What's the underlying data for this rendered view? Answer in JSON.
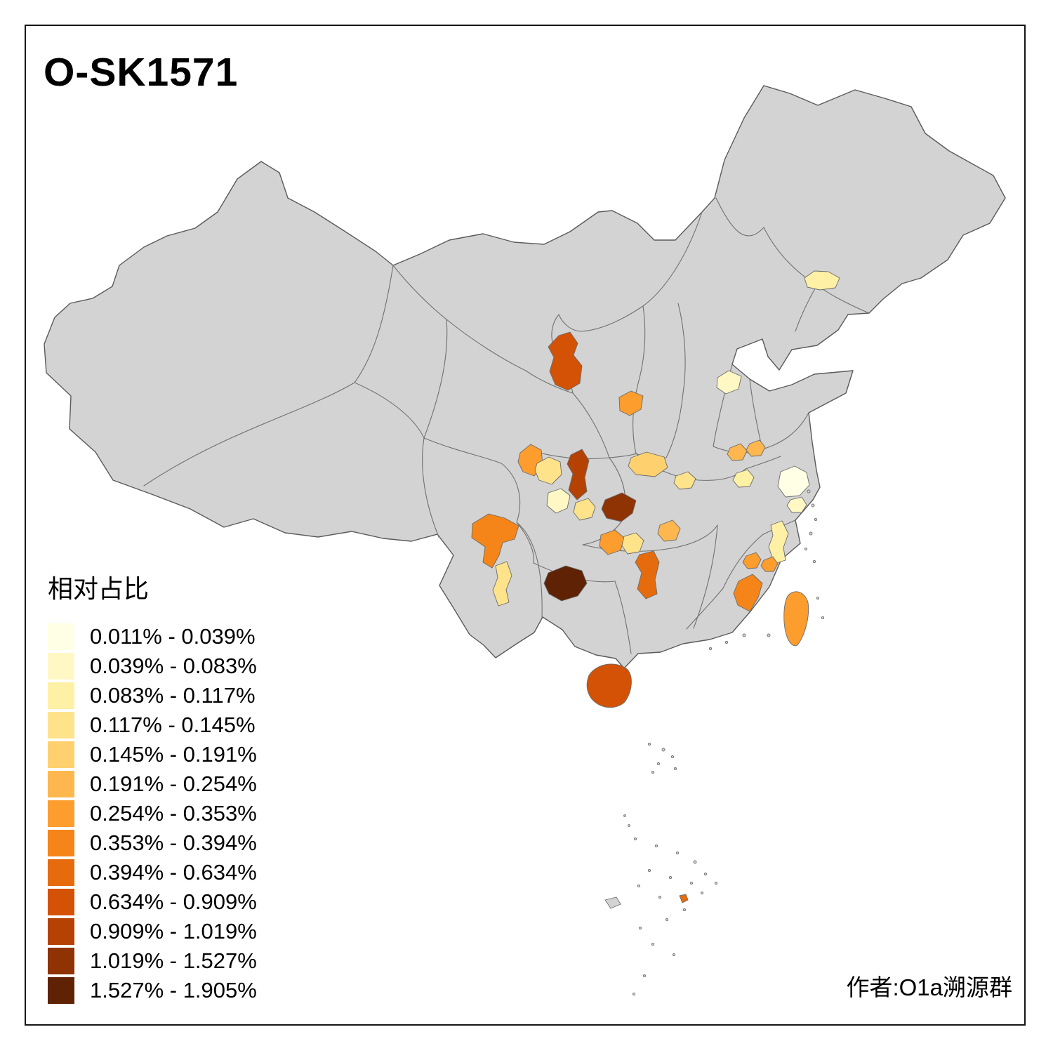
{
  "title": "O-SK1571",
  "attribution": "作者:O1a溯源群",
  "legend": {
    "title": "相对占比",
    "items": [
      {
        "range": "0.011% - 0.039%",
        "color": "#FFFFE5"
      },
      {
        "range": "0.039% - 0.083%",
        "color": "#FFF8C4"
      },
      {
        "range": "0.083% - 0.117%",
        "color": "#FEF0A5"
      },
      {
        "range": "0.117% - 0.145%",
        "color": "#FEE38B"
      },
      {
        "range": "0.145% - 0.191%",
        "color": "#FED16E"
      },
      {
        "range": "0.191% - 0.254%",
        "color": "#FEB74E"
      },
      {
        "range": "0.254% - 0.353%",
        "color": "#FD9D2E"
      },
      {
        "range": "0.353% - 0.394%",
        "color": "#F58518"
      },
      {
        "range": "0.394% - 0.634%",
        "color": "#E66B0D"
      },
      {
        "range": "0.634% - 0.909%",
        "color": "#D35205"
      },
      {
        "range": "0.909% - 1.019%",
        "color": "#B54203"
      },
      {
        "range": "1.019% - 1.527%",
        "color": "#8F3204"
      },
      {
        "range": "1.527% - 1.905%",
        "color": "#5F2204"
      }
    ]
  },
  "map": {
    "base_fill": "#D3D3D3",
    "border_color": "#5A5A5A",
    "background": "#FFFFFF",
    "regions": [
      {
        "name": "jilin-area",
        "color": "#FEF0A5",
        "range": "0.083% - 0.117%"
      },
      {
        "name": "shanxi-area",
        "color": "#FFF8C4",
        "range": "0.039% - 0.083%"
      },
      {
        "name": "northern-shaanxi",
        "color": "#FD9D2E",
        "range": "0.254% - 0.353%"
      },
      {
        "name": "ningxia-area",
        "color": "#D35205",
        "range": "0.634% - 0.909%"
      },
      {
        "name": "gansu-south",
        "color": "#FD9D2E",
        "range": "0.254% - 0.353%"
      },
      {
        "name": "sichuan-northwest",
        "color": "#FEE38B",
        "range": "0.117% - 0.145%"
      },
      {
        "name": "chengdu-area",
        "color": "#B54203",
        "range": "0.909% - 1.019%"
      },
      {
        "name": "sichuan-central",
        "color": "#FFF8C4",
        "range": "0.039% - 0.083%"
      },
      {
        "name": "sichuan-east",
        "color": "#FEE38B",
        "range": "0.117% - 0.145%"
      },
      {
        "name": "liangshan-area",
        "color": "#F58518",
        "range": "0.353% - 0.394%"
      },
      {
        "name": "yunnan-central",
        "color": "#FEE38B",
        "range": "0.117% - 0.145%"
      },
      {
        "name": "guizhou-area",
        "color": "#5F2204",
        "range": "1.527% - 1.905%"
      },
      {
        "name": "chongqing-area",
        "color": "#8F3204",
        "range": "1.019% - 1.527%"
      },
      {
        "name": "henan-southwest",
        "color": "#FED16E",
        "range": "0.145% - 0.191%"
      },
      {
        "name": "henan-southeast",
        "color": "#FEE38B",
        "range": "0.117% - 0.145%"
      },
      {
        "name": "hubei-central",
        "color": "#FEB74E",
        "range": "0.191% - 0.254%"
      },
      {
        "name": "hunan-northwest",
        "color": "#FD9D2E",
        "range": "0.254% - 0.353%"
      },
      {
        "name": "hunan-north",
        "color": "#FEE38B",
        "range": "0.117% - 0.145%"
      },
      {
        "name": "hunan-central",
        "color": "#E66B0D",
        "range": "0.394% - 0.634%"
      },
      {
        "name": "anhui-north-a",
        "color": "#FEB74E",
        "range": "0.191% - 0.254%"
      },
      {
        "name": "anhui-north-b",
        "color": "#FEB74E",
        "range": "0.191% - 0.254%"
      },
      {
        "name": "anhui-central",
        "color": "#FEF0A5",
        "range": "0.083% - 0.117%"
      },
      {
        "name": "jiangsu-coast",
        "color": "#FFFFE5",
        "range": "0.011% - 0.039%"
      },
      {
        "name": "shanghai-area",
        "color": "#FFF8C4",
        "range": "0.039% - 0.083%"
      },
      {
        "name": "zhejiang-coast",
        "color": "#FEF0A5",
        "range": "0.083% - 0.117%"
      },
      {
        "name": "zhejiang-south",
        "color": "#FD9D2E",
        "range": "0.254% - 0.353%"
      },
      {
        "name": "fujian-northeast",
        "color": "#FD9D2E",
        "range": "0.254% - 0.353%"
      },
      {
        "name": "fujian-south",
        "color": "#F58518",
        "range": "0.353% - 0.394%"
      },
      {
        "name": "taiwan",
        "color": "#FD9D2E",
        "range": "0.254% - 0.353%"
      },
      {
        "name": "hainan",
        "color": "#D35205",
        "range": "0.634% - 0.909%"
      },
      {
        "name": "south-china-sea-island",
        "color": "#E66B0D",
        "range": "0.394% - 0.634%"
      }
    ]
  }
}
